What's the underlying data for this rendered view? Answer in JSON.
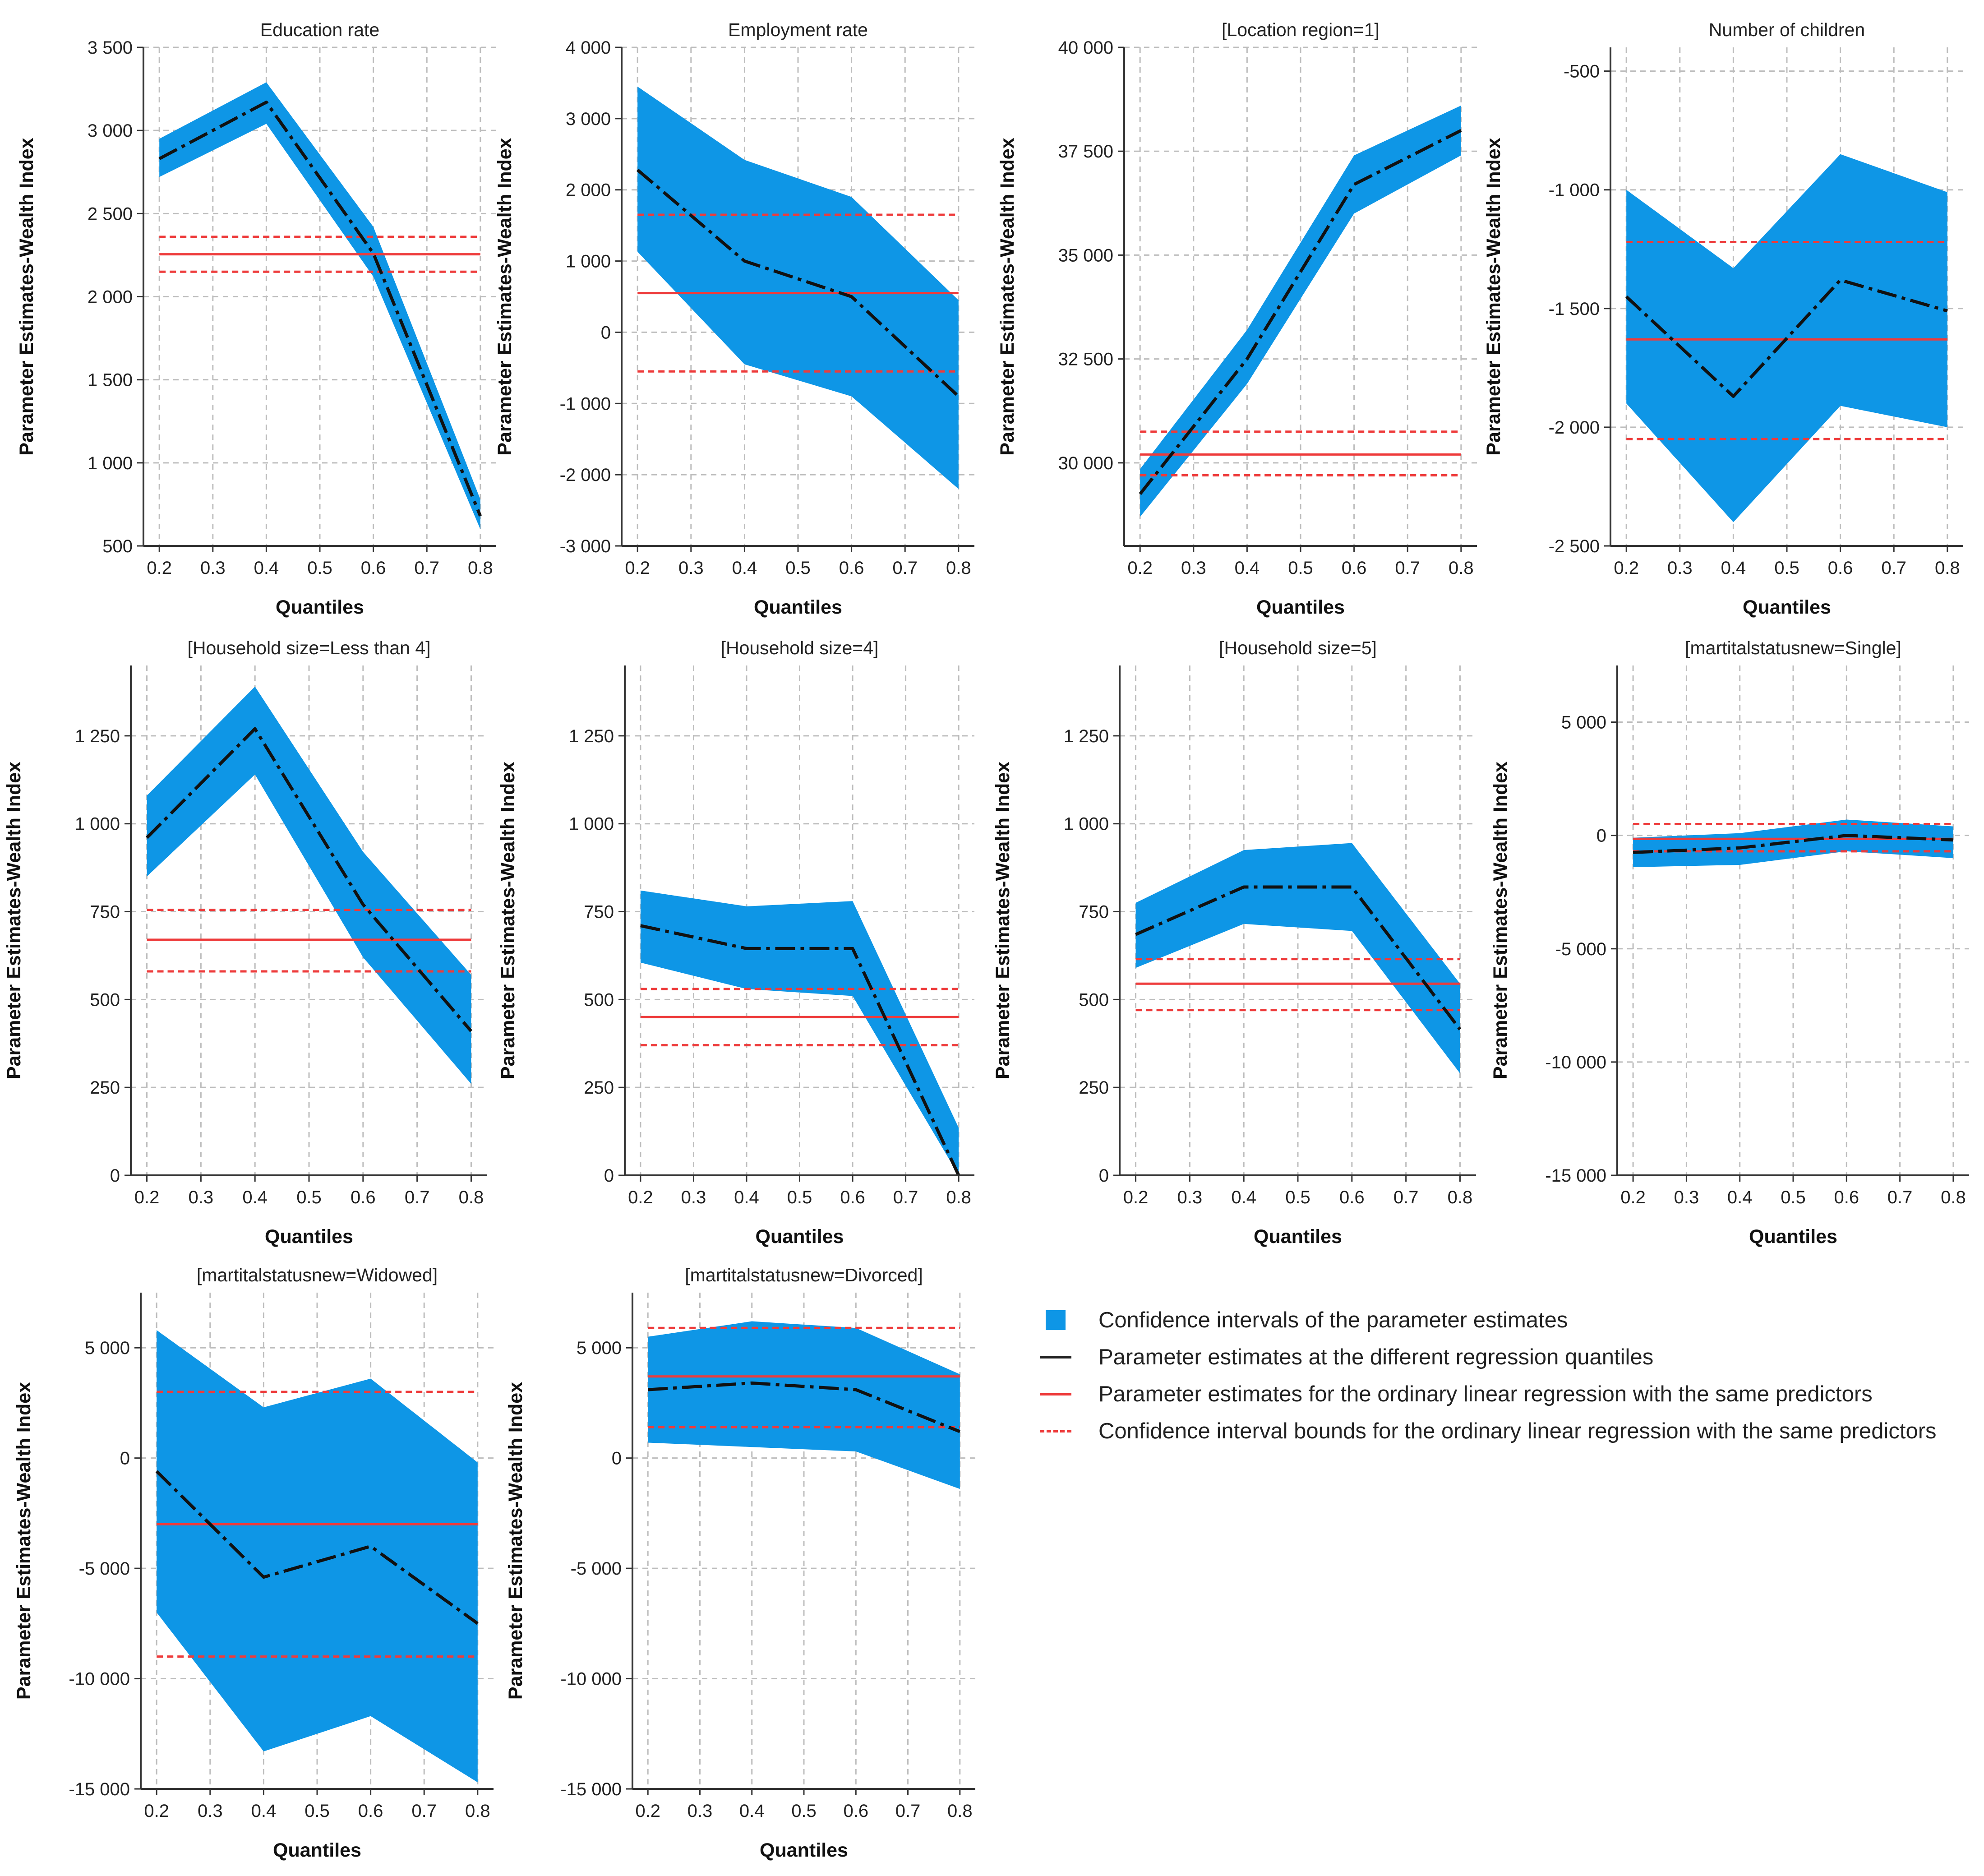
{
  "colors": {
    "ci": "#0e96e6",
    "estimate": "#111111",
    "ols": "#ee3b3b",
    "grid": "#bdbdbd"
  },
  "legend": {
    "ci": "Confidence intervals of the parameter estimates",
    "estimate": "Parameter estimates at the different regression quantiles",
    "ols": "Parameter estimates for the ordinary linear regression with the same predictors",
    "ols_ci": "Confidence interval bounds for the ordinary linear regression with the same predictors"
  },
  "chart_data": [
    {
      "type": "line",
      "title": "Education rate",
      "xlabel": "Quantiles",
      "ylabel": "Parameter Estimates-Wealth Index",
      "x": [
        0.2,
        0.4,
        0.6,
        0.8
      ],
      "xticks": [
        "0.2",
        "0.3",
        "0.4",
        "0.5",
        "0.6",
        "0.7",
        "0.8"
      ],
      "ylim": [
        500,
        3500
      ],
      "yticks": [
        500,
        1000,
        1500,
        2000,
        2500,
        3000,
        3500
      ],
      "ytick_labels": [
        "500",
        "1 000",
        "1 500",
        "2 000",
        "2 500",
        "3 000",
        "3 500"
      ],
      "estimate": [
        2830,
        3170,
        2260,
        680
      ],
      "ci_lower": [
        2720,
        3040,
        2120,
        600
      ],
      "ci_upper": [
        2950,
        3290,
        2420,
        780
      ],
      "ols": 2255,
      "ols_lower": 2150,
      "ols_upper": 2360
    },
    {
      "type": "line",
      "title": "Employment rate",
      "xlabel": "Quantiles",
      "ylabel": "Parameter Estimates-Wealth Index",
      "x": [
        0.2,
        0.4,
        0.6,
        0.8
      ],
      "xticks": [
        "0.2",
        "0.3",
        "0.4",
        "0.5",
        "0.6",
        "0.7",
        "0.8"
      ],
      "ylim": [
        -3000,
        4000
      ],
      "yticks": [
        -3000,
        -2000,
        -1000,
        0,
        1000,
        2000,
        3000,
        4000
      ],
      "ytick_labels": [
        "-3 000",
        "-2 000",
        "-1 000",
        "0",
        "1 000",
        "2 000",
        "3 000",
        "4 000"
      ],
      "estimate": [
        2280,
        1000,
        500,
        -900
      ],
      "ci_lower": [
        1130,
        -450,
        -900,
        -2200
      ],
      "ci_upper": [
        3450,
        2420,
        1900,
        450
      ],
      "ols": 550,
      "ols_lower": -550,
      "ols_upper": 1650
    },
    {
      "type": "line",
      "title": "[Location region=1]",
      "xlabel": "Quantiles",
      "ylabel": "Parameter Estimates-Wealth Index",
      "x": [
        0.2,
        0.4,
        0.6,
        0.8
      ],
      "xticks": [
        "0.2",
        "0.3",
        "0.4",
        "0.5",
        "0.6",
        "0.7",
        "0.8"
      ],
      "ylim": [
        28000,
        40000
      ],
      "yticks": [
        30000,
        32500,
        35000,
        37500,
        40000
      ],
      "ytick_labels": [
        "30 000",
        "32 500",
        "35 000",
        "37 500",
        "40 000"
      ],
      "estimate": [
        29250,
        32500,
        36700,
        38000
      ],
      "ci_lower": [
        28700,
        31900,
        36000,
        37400
      ],
      "ci_upper": [
        29850,
        33200,
        37400,
        38600
      ],
      "ols": 30200,
      "ols_lower": 29700,
      "ols_upper": 30750
    },
    {
      "type": "line",
      "title": "Number of children",
      "xlabel": "Quantiles",
      "ylabel": "Parameter Estimates-Wealth Index",
      "x": [
        0.2,
        0.4,
        0.6,
        0.8
      ],
      "xticks": [
        "0.2",
        "0.3",
        "0.4",
        "0.5",
        "0.6",
        "0.7",
        "0.8"
      ],
      "ylim": [
        -2500,
        -400
      ],
      "yticks": [
        -2500,
        -2000,
        -1500,
        -1000,
        -500
      ],
      "ytick_labels": [
        "-2 500",
        "-2 000",
        "-1 500",
        "-1 000",
        "-500"
      ],
      "estimate": [
        -1450,
        -1870,
        -1380,
        -1510
      ],
      "ci_lower": [
        -1900,
        -2400,
        -1910,
        -2000
      ],
      "ci_upper": [
        -1000,
        -1330,
        -850,
        -1010
      ],
      "ols": -1630,
      "ols_lower": -2050,
      "ols_upper": -1220
    },
    {
      "type": "line",
      "title": "[Household size=Less than 4]",
      "xlabel": "Quantiles",
      "ylabel": "Parameter Estimates-Wealth Index",
      "x": [
        0.2,
        0.4,
        0.6,
        0.8
      ],
      "xticks": [
        "0.2",
        "0.3",
        "0.4",
        "0.5",
        "0.6",
        "0.7",
        "0.8"
      ],
      "ylim": [
        0,
        1450
      ],
      "yticks": [
        0,
        250,
        500,
        750,
        1000,
        1250
      ],
      "ytick_labels": [
        "0",
        "250",
        "500",
        "750",
        "1 000",
        "1 250"
      ],
      "estimate": [
        960,
        1270,
        770,
        410
      ],
      "ci_lower": [
        850,
        1140,
        620,
        260
      ],
      "ci_upper": [
        1080,
        1390,
        920,
        570
      ],
      "ols": 670,
      "ols_lower": 580,
      "ols_upper": 755
    },
    {
      "type": "line",
      "title": "[Household size=4]",
      "xlabel": "Quantiles",
      "ylabel": "Parameter Estimates-Wealth Index",
      "x": [
        0.2,
        0.4,
        0.6,
        0.8
      ],
      "xticks": [
        "0.2",
        "0.3",
        "0.4",
        "0.5",
        "0.6",
        "0.7",
        "0.8"
      ],
      "ylim": [
        0,
        1450
      ],
      "yticks": [
        0,
        250,
        500,
        750,
        1000,
        1250
      ],
      "ytick_labels": [
        "0",
        "250",
        "500",
        "750",
        "1 000",
        "1 250"
      ],
      "estimate": [
        710,
        645,
        645,
        0
      ],
      "ci_lower": [
        605,
        530,
        510,
        0
      ],
      "ci_upper": [
        810,
        765,
        780,
        135
      ],
      "ols": 450,
      "ols_lower": 370,
      "ols_upper": 530
    },
    {
      "type": "line",
      "title": "[Household size=5]",
      "xlabel": "Quantiles",
      "ylabel": "Parameter Estimates-Wealth Index",
      "x": [
        0.2,
        0.4,
        0.6,
        0.8
      ],
      "xticks": [
        "0.2",
        "0.3",
        "0.4",
        "0.5",
        "0.6",
        "0.7",
        "0.8"
      ],
      "ylim": [
        0,
        1450
      ],
      "yticks": [
        0,
        250,
        500,
        750,
        1000,
        1250
      ],
      "ytick_labels": [
        "0",
        "250",
        "500",
        "750",
        "1 000",
        "1 250"
      ],
      "estimate": [
        685,
        820,
        820,
        415
      ],
      "ci_lower": [
        590,
        715,
        695,
        290
      ],
      "ci_upper": [
        775,
        925,
        945,
        545
      ],
      "ols": 545,
      "ols_lower": 470,
      "ols_upper": 615
    },
    {
      "type": "line",
      "title": "[martitalstatusnew=Single]",
      "xlabel": "Quantiles",
      "ylabel": "Parameter Estimates-Wealth Index",
      "x": [
        0.2,
        0.4,
        0.6,
        0.8
      ],
      "xticks": [
        "0.2",
        "0.3",
        "0.4",
        "0.5",
        "0.6",
        "0.7",
        "0.8"
      ],
      "ylim": [
        -15000,
        7500
      ],
      "yticks": [
        -15000,
        -10000,
        -5000,
        0,
        5000
      ],
      "ytick_labels": [
        "-15 000",
        "-10 000",
        "-5 000",
        "0",
        "5 000"
      ],
      "estimate": [
        -750,
        -550,
        0,
        -200
      ],
      "ci_lower": [
        -1400,
        -1300,
        -700,
        -1000
      ],
      "ci_upper": [
        -100,
        100,
        700,
        400
      ],
      "ols": -150,
      "ols_lower": -700,
      "ols_upper": 500
    },
    {
      "type": "line",
      "title": "[martitalstatusnew=Widowed]",
      "xlabel": "Quantiles",
      "ylabel": "Parameter Estimates-Wealth Index",
      "x": [
        0.2,
        0.4,
        0.6,
        0.8
      ],
      "xticks": [
        "0.2",
        "0.3",
        "0.4",
        "0.5",
        "0.6",
        "0.7",
        "0.8"
      ],
      "ylim": [
        -15000,
        7500
      ],
      "yticks": [
        -15000,
        -10000,
        -5000,
        0,
        5000
      ],
      "ytick_labels": [
        "-15 000",
        "-10 000",
        "-5 000",
        "0",
        "5 000"
      ],
      "estimate": [
        -600,
        -5400,
        -4000,
        -7500
      ],
      "ci_lower": [
        -7000,
        -13300,
        -11700,
        -14700
      ],
      "ci_upper": [
        5800,
        2300,
        3600,
        -200
      ],
      "ols": -3000,
      "ols_lower": -9000,
      "ols_upper": 3000
    },
    {
      "type": "line",
      "title": "[martitalstatusnew=Divorced]",
      "xlabel": "Quantiles",
      "ylabel": "Parameter Estimates-Wealth Index",
      "x": [
        0.2,
        0.4,
        0.6,
        0.8
      ],
      "xticks": [
        "0.2",
        "0.3",
        "0.4",
        "0.5",
        "0.6",
        "0.7",
        "0.8"
      ],
      "ylim": [
        -15000,
        7500
      ],
      "yticks": [
        -15000,
        -10000,
        -5000,
        0,
        5000
      ],
      "ytick_labels": [
        "-15 000",
        "-10 000",
        "-5 000",
        "0",
        "5 000"
      ],
      "estimate": [
        3100,
        3400,
        3100,
        1200
      ],
      "ci_lower": [
        700,
        500,
        300,
        -1400
      ],
      "ci_upper": [
        5500,
        6200,
        5900,
        3800
      ],
      "ols": 3700,
      "ols_lower": 1400,
      "ols_upper": 5900
    }
  ]
}
